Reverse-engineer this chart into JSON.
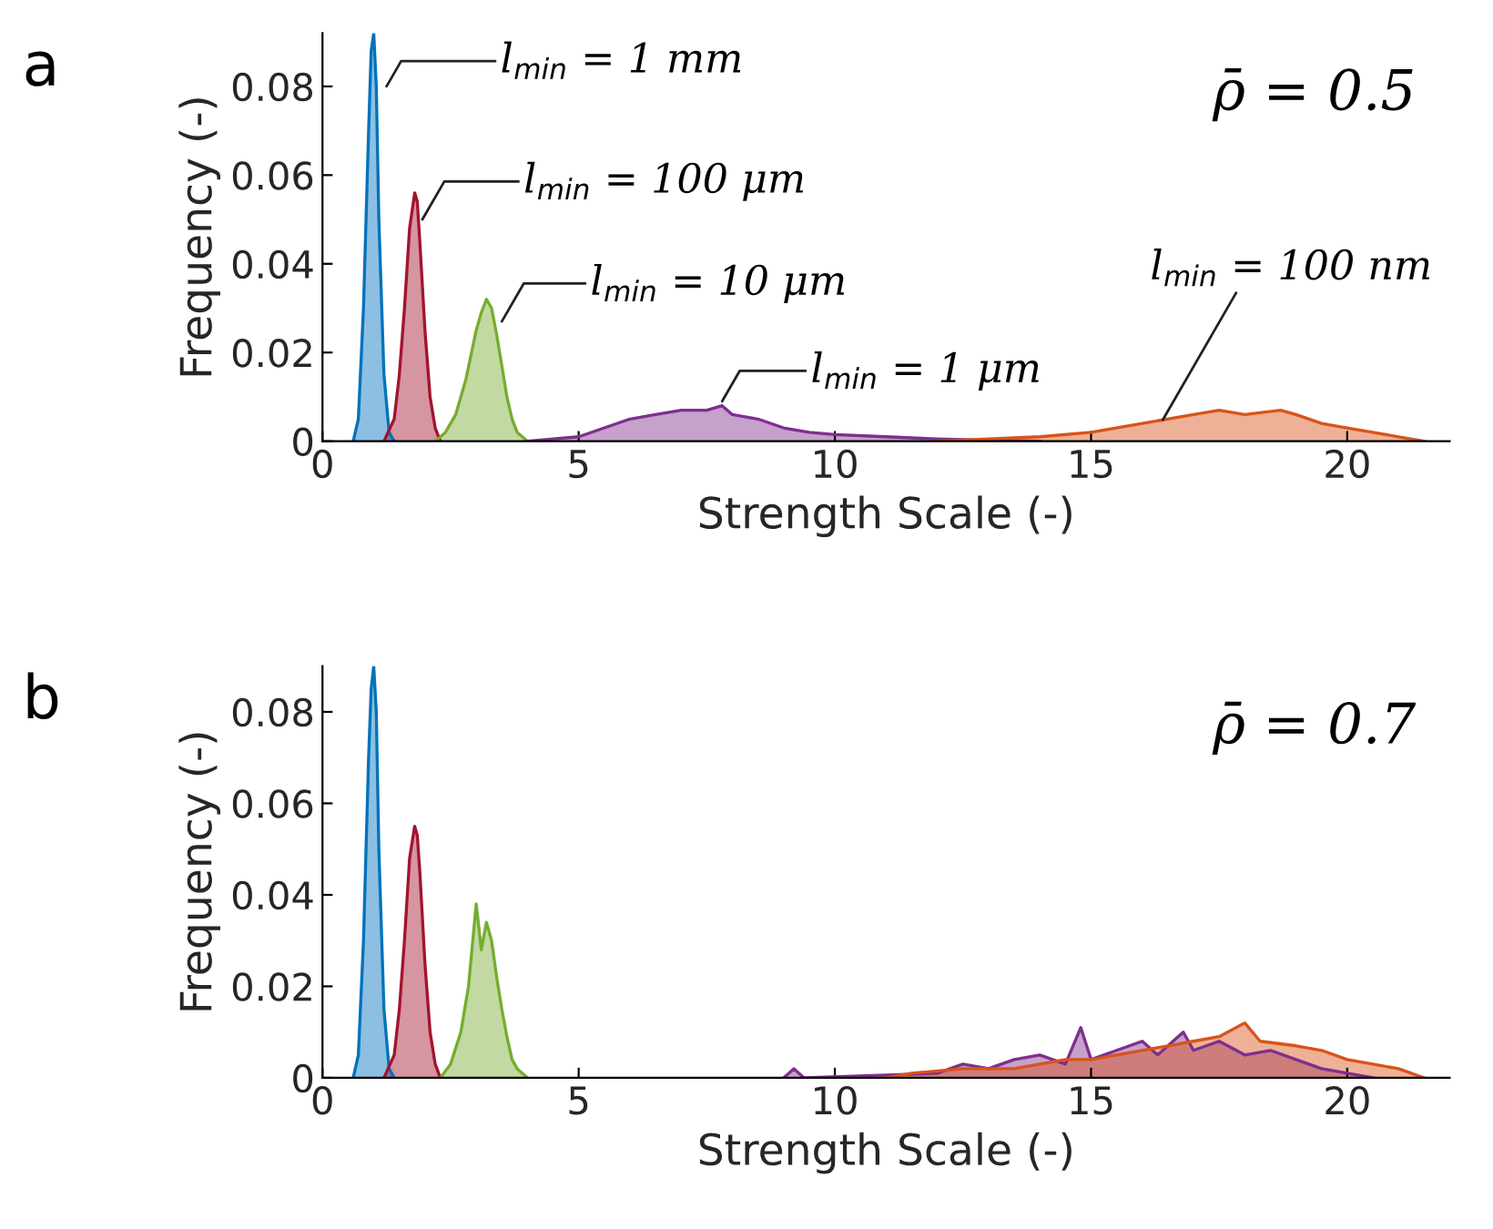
{
  "chart_data": [
    {
      "type": "area",
      "title": "a",
      "xlabel": "Strength Scale (-)",
      "ylabel": "Frequency (-)",
      "xlim": [
        0,
        22
      ],
      "ylim": [
        0,
        0.092
      ],
      "xticks": [
        0,
        5,
        10,
        15,
        20
      ],
      "yticks": [
        0,
        0.02,
        0.04,
        0.06,
        0.08
      ],
      "grid": false,
      "series": [
        {
          "color": "#0072bd",
          "x": [
            0.6,
            0.7,
            0.8,
            0.9,
            0.95,
            1.0,
            1.05,
            1.1,
            1.2,
            1.3,
            1.4
          ],
          "values": [
            0,
            0.005,
            0.03,
            0.07,
            0.088,
            0.092,
            0.08,
            0.05,
            0.015,
            0.002,
            0
          ]
        },
        {
          "color": "#a2142f",
          "x": [
            1.2,
            1.4,
            1.5,
            1.6,
            1.7,
            1.8,
            1.85,
            1.9,
            2.0,
            2.1,
            2.2,
            2.3
          ],
          "values": [
            0,
            0.005,
            0.015,
            0.03,
            0.048,
            0.056,
            0.054,
            0.045,
            0.025,
            0.01,
            0.003,
            0
          ]
        },
        {
          "color": "#77ac30",
          "x": [
            2.2,
            2.4,
            2.6,
            2.8,
            3.0,
            3.1,
            3.2,
            3.3,
            3.4,
            3.5,
            3.6,
            3.7,
            3.8,
            4.0
          ],
          "values": [
            0,
            0.002,
            0.006,
            0.014,
            0.025,
            0.029,
            0.032,
            0.03,
            0.024,
            0.017,
            0.01,
            0.005,
            0.002,
            0
          ]
        },
        {
          "color": "#7e2f8e",
          "x": [
            4,
            5,
            5.5,
            6,
            6.5,
            7,
            7.5,
            7.8,
            8,
            8.5,
            9,
            9.5,
            10,
            11,
            12,
            13,
            14
          ],
          "values": [
            0,
            0.001,
            0.003,
            0.005,
            0.006,
            0.007,
            0.007,
            0.008,
            0.006,
            0.005,
            0.003,
            0.002,
            0.0015,
            0.001,
            0.0005,
            0.0002,
            0
          ]
        },
        {
          "color": "#d95319",
          "x": [
            12,
            13,
            14,
            15,
            16,
            17,
            17.5,
            18,
            18.7,
            19,
            19.5,
            20,
            20.5,
            21,
            21.5
          ],
          "values": [
            0,
            0.0005,
            0.001,
            0.002,
            0.004,
            0.006,
            0.007,
            0.006,
            0.007,
            0.006,
            0.004,
            0.003,
            0.002,
            0.001,
            0
          ]
        }
      ],
      "annotations": [
        {
          "text": "l$_{min}$ = 1 mm",
          "x": 1.25,
          "y": 0.08
        },
        {
          "text": "l$_{min}$ = 100 μm",
          "x": 1.95,
          "y": 0.05
        },
        {
          "text": "l$_{min}$ = 10 μm",
          "x": 3.5,
          "y": 0.027
        },
        {
          "text": "l$_{min}$ = 1 μm",
          "x": 7.8,
          "y": 0.009
        },
        {
          "text": "l$_{min}$ = 100 nm",
          "x": 16.4,
          "y": 0.0048
        },
        "ρ̄ = 0.5"
      ]
    },
    {
      "type": "area",
      "title": "b",
      "xlabel": "Strength Scale (-)",
      "ylabel": "Frequency (-)",
      "xlim": [
        0,
        22
      ],
      "ylim": [
        0,
        0.09
      ],
      "xticks": [
        0,
        5,
        10,
        15,
        20
      ],
      "yticks": [
        0,
        0.02,
        0.04,
        0.06,
        0.08
      ],
      "grid": false,
      "series": [
        {
          "color": "#0072bd",
          "x": [
            0.6,
            0.7,
            0.8,
            0.9,
            0.95,
            1.0,
            1.05,
            1.1,
            1.2,
            1.3,
            1.4
          ],
          "values": [
            0,
            0.005,
            0.03,
            0.07,
            0.085,
            0.09,
            0.08,
            0.05,
            0.015,
            0.002,
            0
          ]
        },
        {
          "color": "#a2142f",
          "x": [
            1.2,
            1.4,
            1.5,
            1.6,
            1.7,
            1.8,
            1.85,
            1.9,
            2.0,
            2.1,
            2.2,
            2.3
          ],
          "values": [
            0,
            0.005,
            0.015,
            0.03,
            0.048,
            0.055,
            0.053,
            0.045,
            0.025,
            0.01,
            0.003,
            0
          ]
        },
        {
          "color": "#77ac30",
          "x": [
            2.3,
            2.5,
            2.7,
            2.85,
            3.0,
            3.1,
            3.2,
            3.3,
            3.4,
            3.5,
            3.6,
            3.7,
            3.8,
            4.0
          ],
          "values": [
            0,
            0.003,
            0.01,
            0.02,
            0.038,
            0.028,
            0.034,
            0.03,
            0.022,
            0.015,
            0.009,
            0.004,
            0.002,
            0
          ]
        },
        {
          "color": "#7e2f8e",
          "x": [
            9,
            9.2,
            9.4,
            12,
            12.5,
            13,
            13.5,
            14,
            14.5,
            14.8,
            15,
            15.5,
            16,
            16.3,
            16.8,
            17,
            17.5,
            18,
            18.5,
            19,
            19.5,
            20,
            20.5
          ],
          "values": [
            0,
            0.002,
            0,
            0.001,
            0.003,
            0.002,
            0.004,
            0.005,
            0.003,
            0.011,
            0.004,
            0.006,
            0.008,
            0.005,
            0.01,
            0.006,
            0.008,
            0.005,
            0.006,
            0.004,
            0.002,
            0.001,
            0
          ]
        },
        {
          "color": "#d95319",
          "x": [
            11,
            11.5,
            12.5,
            13.5,
            14.5,
            15,
            16,
            16.5,
            17,
            17.5,
            18,
            18.3,
            19,
            19.5,
            20,
            20.5,
            21,
            21.5
          ],
          "values": [
            0,
            0.001,
            0.002,
            0.002,
            0.004,
            0.004,
            0.006,
            0.007,
            0.008,
            0.009,
            0.012,
            0.008,
            0.007,
            0.006,
            0.004,
            0.003,
            0.002,
            0
          ]
        }
      ],
      "annotations": [
        "ρ̄ = 0.7"
      ]
    }
  ]
}
